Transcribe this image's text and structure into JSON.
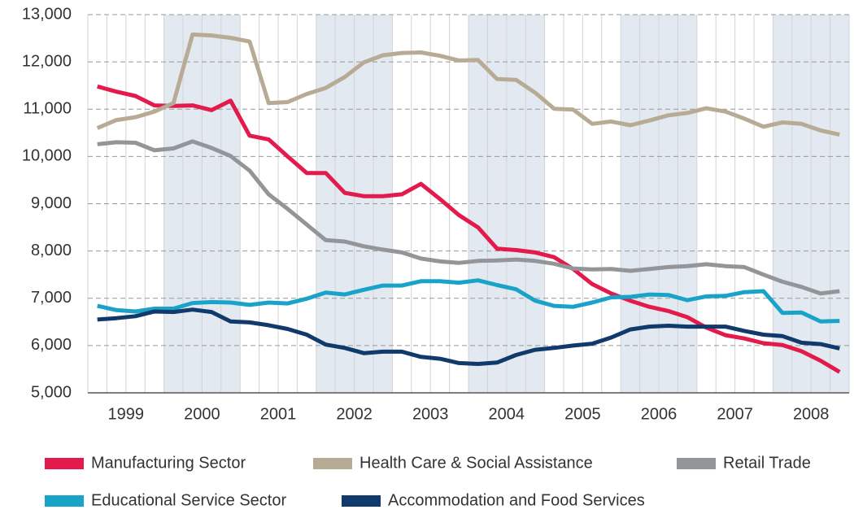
{
  "chart_data": {
    "type": "line",
    "categories": [
      null,
      "1999",
      null,
      null,
      null,
      "2000",
      null,
      null,
      null,
      "2001",
      null,
      null,
      null,
      "2002",
      null,
      null,
      null,
      "2003",
      null,
      null,
      null,
      "2004",
      null,
      null,
      null,
      "2005",
      null,
      null,
      null,
      "2006",
      null,
      null,
      null,
      "2007",
      null,
      null,
      null,
      "2008",
      null,
      null
    ],
    "series": [
      {
        "name": "Manufacturing Sector",
        "color": "#e31b4d",
        "values": [
          11480,
          11370,
          11280,
          11080,
          11070,
          11080,
          10980,
          11180,
          10440,
          10360,
          10000,
          9650,
          9650,
          9230,
          9160,
          9160,
          9200,
          9420,
          9100,
          8760,
          8500,
          8050,
          8020,
          7970,
          7870,
          7620,
          7300,
          7100,
          6950,
          6820,
          6730,
          6600,
          6380,
          6220,
          6150,
          6050,
          6010,
          5880,
          5680,
          5440
        ]
      },
      {
        "name": "Health Care & Social Assistance",
        "color": "#b8ab96",
        "values": [
          10600,
          10770,
          10830,
          10950,
          11130,
          12580,
          12560,
          12510,
          12430,
          11130,
          11150,
          11320,
          11450,
          11680,
          11990,
          12140,
          12190,
          12200,
          12130,
          12030,
          12040,
          11640,
          11620,
          11350,
          11010,
          10990,
          10690,
          10740,
          10660,
          10760,
          10870,
          10920,
          11020,
          10950,
          10800,
          10630,
          10720,
          10690,
          10550,
          10460
        ]
      },
      {
        "name": "Retail Trade",
        "color": "#939598",
        "values": [
          10260,
          10300,
          10290,
          10130,
          10170,
          10320,
          10180,
          10010,
          9700,
          9200,
          8890,
          8560,
          8230,
          8200,
          8100,
          8030,
          7970,
          7840,
          7780,
          7750,
          7790,
          7800,
          7820,
          7790,
          7730,
          7630,
          7610,
          7620,
          7580,
          7620,
          7660,
          7680,
          7720,
          7680,
          7660,
          7500,
          7350,
          7240,
          7100,
          7150
        ]
      },
      {
        "name": "Educational Service Sector",
        "color": "#1aa3c8",
        "values": [
          6840,
          6750,
          6720,
          6780,
          6780,
          6900,
          6920,
          6910,
          6860,
          6910,
          6890,
          6990,
          7120,
          7080,
          7180,
          7270,
          7270,
          7360,
          7360,
          7330,
          7380,
          7280,
          7190,
          6950,
          6840,
          6820,
          6910,
          7020,
          7030,
          7080,
          7070,
          6960,
          7040,
          7050,
          7130,
          7150,
          6690,
          6700,
          6510,
          6520
        ]
      },
      {
        "name": "Accommodation and Food Services",
        "color": "#0f3a6b",
        "values": [
          6550,
          6580,
          6620,
          6720,
          6710,
          6760,
          6710,
          6510,
          6490,
          6430,
          6350,
          6230,
          6020,
          5950,
          5840,
          5870,
          5870,
          5760,
          5720,
          5630,
          5610,
          5640,
          5800,
          5910,
          5950,
          6000,
          6040,
          6170,
          6340,
          6400,
          6420,
          6400,
          6400,
          6400,
          6310,
          6230,
          6200,
          6060,
          6030,
          5940
        ]
      }
    ],
    "ylim": [
      5000,
      13000
    ],
    "yticks": [
      {
        "value": 5000,
        "label": "5,000"
      },
      {
        "value": 6000,
        "label": "6,000"
      },
      {
        "value": 7000,
        "label": "7,000"
      },
      {
        "value": 8000,
        "label": "8,000"
      },
      {
        "value": 9000,
        "label": "9,000"
      },
      {
        "value": 10000,
        "label": "10,000"
      },
      {
        "value": 11000,
        "label": "11,000"
      },
      {
        "value": 12000,
        "label": "12,000"
      },
      {
        "value": 13000,
        "label": "13,000"
      }
    ],
    "grid": true
  }
}
